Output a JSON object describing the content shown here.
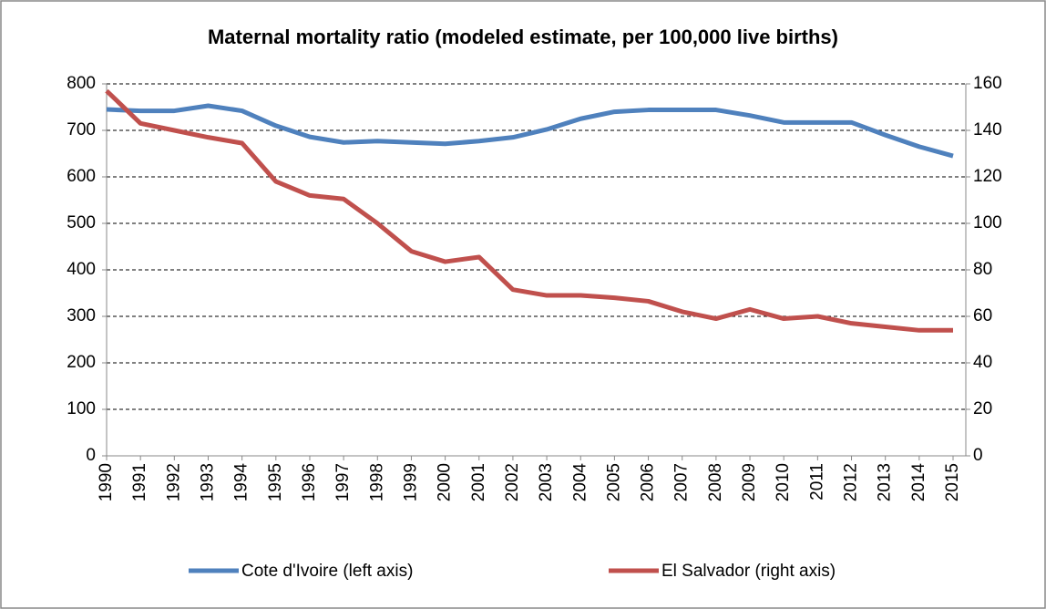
{
  "chart_data": {
    "type": "line",
    "title": "Maternal mortality ratio (modeled estimate, per 100,000 live births)",
    "categories": [
      "1990",
      "1991",
      "1992",
      "1993",
      "1994",
      "1995",
      "1996",
      "1997",
      "1998",
      "1999",
      "2000",
      "2001",
      "2002",
      "2003",
      "2004",
      "2005",
      "2006",
      "2007",
      "2008",
      "2009",
      "2010",
      "2011",
      "2012",
      "2013",
      "2014",
      "2015"
    ],
    "series": [
      {
        "name": "Cote d'Ivoire (left axis)",
        "color": "#4f81bd",
        "axis": "y",
        "values": [
          745,
          742,
          742,
          753,
          742,
          710,
          686,
          674,
          677,
          674,
          671,
          677,
          685,
          702,
          725,
          740,
          744,
          744,
          744,
          732,
          717,
          717,
          717,
          690,
          665,
          645
        ]
      },
      {
        "name": "El Salvador (right axis)",
        "color": "#c0504d",
        "axis": "y2",
        "values": [
          157,
          143,
          140,
          137,
          134.5,
          118,
          112,
          110.5,
          100,
          88,
          83.5,
          85.5,
          71.5,
          69,
          69,
          68,
          66.5,
          62,
          59,
          63,
          59,
          60,
          57,
          55.5,
          54,
          54
        ]
      }
    ],
    "ylim": [
      0,
      800
    ],
    "yticks": [
      0,
      100,
      200,
      300,
      400,
      500,
      600,
      700,
      800
    ],
    "y2lim": [
      0,
      160
    ],
    "y2ticks": [
      0,
      20,
      40,
      60,
      80,
      100,
      120,
      140,
      160
    ],
    "grid": true,
    "legend": "bottom"
  }
}
